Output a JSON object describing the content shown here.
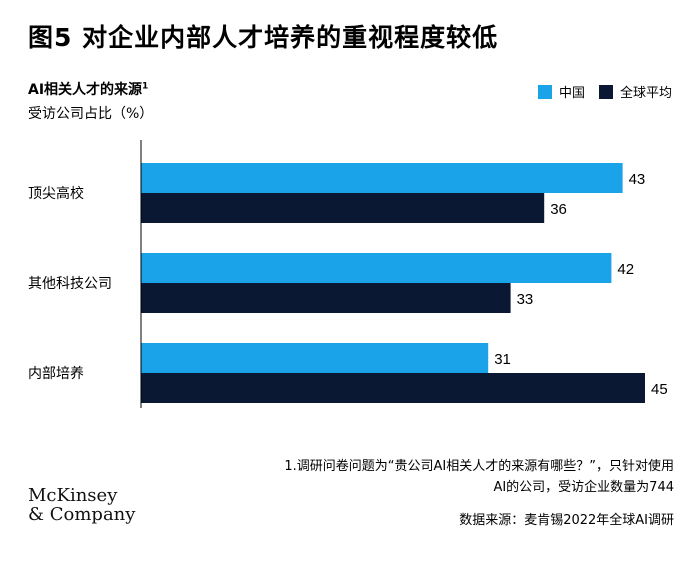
{
  "header": {
    "title": "图5 对企业内部人才培养的重视程度较低",
    "subtitle": "AI相关人才的来源",
    "subtitle_note_mark": "1",
    "unit": "受访公司占比（%）"
  },
  "chart_data": {
    "type": "bar",
    "orientation": "horizontal",
    "categories": [
      "顶尖高校",
      "其他科技公司",
      "内部培养"
    ],
    "series": [
      {
        "name": "中国",
        "values": [
          43,
          42,
          31
        ],
        "color": "#1aa3e8"
      },
      {
        "name": "全球平均",
        "values": [
          36,
          33,
          45
        ],
        "color": "#0a1833"
      }
    ],
    "xlim": [
      0,
      45
    ],
    "legend_position": "top-right",
    "grid": false
  },
  "footer": {
    "note_line1": "1.调研问卷问题为“贵公司AI相关人才的来源有哪些？”，只针对使用",
    "note_line2": "AI的公司，受访企业数量为744",
    "source": "数据来源：麦肯锡2022年全球AI调研",
    "logo_line1": "McKinsey",
    "logo_line2": "& Company"
  }
}
